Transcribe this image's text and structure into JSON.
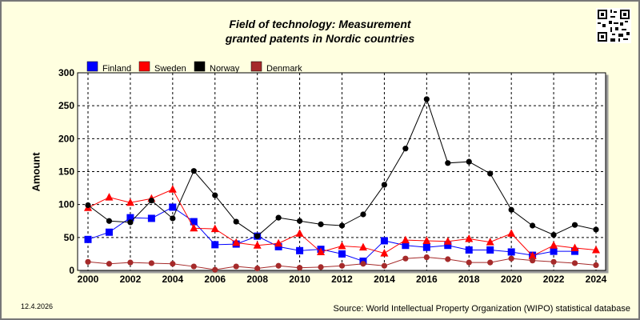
{
  "header": {
    "title_line1": "Field of technology: Measurement",
    "title_line2": "granted patents in Nordic countries"
  },
  "footer": {
    "date": "12.4.2026",
    "source": "Source: World Intellectual Property Organization (WIPO) statistical database"
  },
  "icons": {
    "qr": "qr-code-icon"
  },
  "chart_data": {
    "type": "line",
    "title": "Field of technology: Measurement granted patents in Nordic countries",
    "ylabel": "Amount",
    "xlabel": "",
    "ylim": [
      0,
      300
    ],
    "xlim": [
      2000,
      2024
    ],
    "yticks": [
      0,
      50,
      100,
      150,
      200,
      250,
      300
    ],
    "xticks": [
      2000,
      2002,
      2004,
      2006,
      2008,
      2010,
      2012,
      2014,
      2016,
      2018,
      2020,
      2022,
      2024
    ],
    "grid": true,
    "legend_position": "top-left",
    "x": [
      2000,
      2001,
      2002,
      2003,
      2004,
      2005,
      2006,
      2007,
      2008,
      2009,
      2010,
      2011,
      2012,
      2013,
      2014,
      2015,
      2016,
      2017,
      2018,
      2019,
      2020,
      2021,
      2022,
      2023,
      2024
    ],
    "series": [
      {
        "name": "Finland",
        "color": "#0000ff",
        "marker": "square",
        "values": [
          47,
          58,
          80,
          79,
          96,
          74,
          39,
          40,
          52,
          36,
          30,
          32,
          25,
          14,
          45,
          38,
          35,
          38,
          31,
          31,
          28,
          23,
          29,
          29,
          null
        ]
      },
      {
        "name": "Sweden",
        "color": "#ff0000",
        "marker": "triangle",
        "values": [
          95,
          111,
          103,
          109,
          123,
          64,
          63,
          42,
          38,
          41,
          56,
          28,
          37,
          35,
          26,
          46,
          45,
          44,
          48,
          43,
          56,
          22,
          38,
          34,
          31
        ]
      },
      {
        "name": "Norway",
        "color": "#000000",
        "marker": "circle",
        "values": [
          99,
          75,
          73,
          106,
          79,
          151,
          114,
          74,
          52,
          80,
          75,
          70,
          68,
          85,
          130,
          185,
          260,
          163,
          165,
          147,
          92,
          68,
          54,
          69,
          62
        ]
      },
      {
        "name": "Denmark",
        "color": "#a52a2a",
        "marker": "circle",
        "values": [
          13,
          10,
          12,
          11,
          10,
          6,
          1,
          6,
          3,
          7,
          4,
          5,
          7,
          10,
          7,
          18,
          20,
          17,
          12,
          12,
          18,
          15,
          13,
          11,
          8
        ]
      }
    ]
  }
}
